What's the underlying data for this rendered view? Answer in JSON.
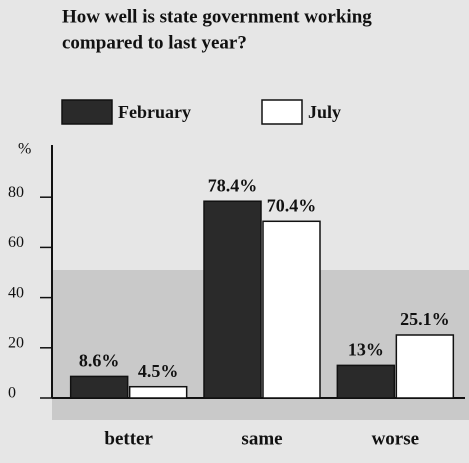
{
  "chart_data": {
    "type": "bar",
    "title_lines": [
      "How well is state government working",
      "compared to last year?"
    ],
    "y_label": "%",
    "categories": [
      "better",
      "same",
      "worse"
    ],
    "series": [
      {
        "name": "February",
        "color": "#2a2a2a",
        "values": [
          8.6,
          78.4,
          13
        ],
        "value_labels": [
          "8.6%",
          "78.4%",
          "13%"
        ]
      },
      {
        "name": "July",
        "color": "#ffffff",
        "values": [
          4.5,
          70.4,
          25.1
        ],
        "value_labels": [
          "4.5%",
          "70.4%",
          "25.1%"
        ]
      }
    ],
    "ylim": [
      0,
      100
    ],
    "yticks": [
      0,
      20,
      40,
      60,
      80
    ]
  }
}
